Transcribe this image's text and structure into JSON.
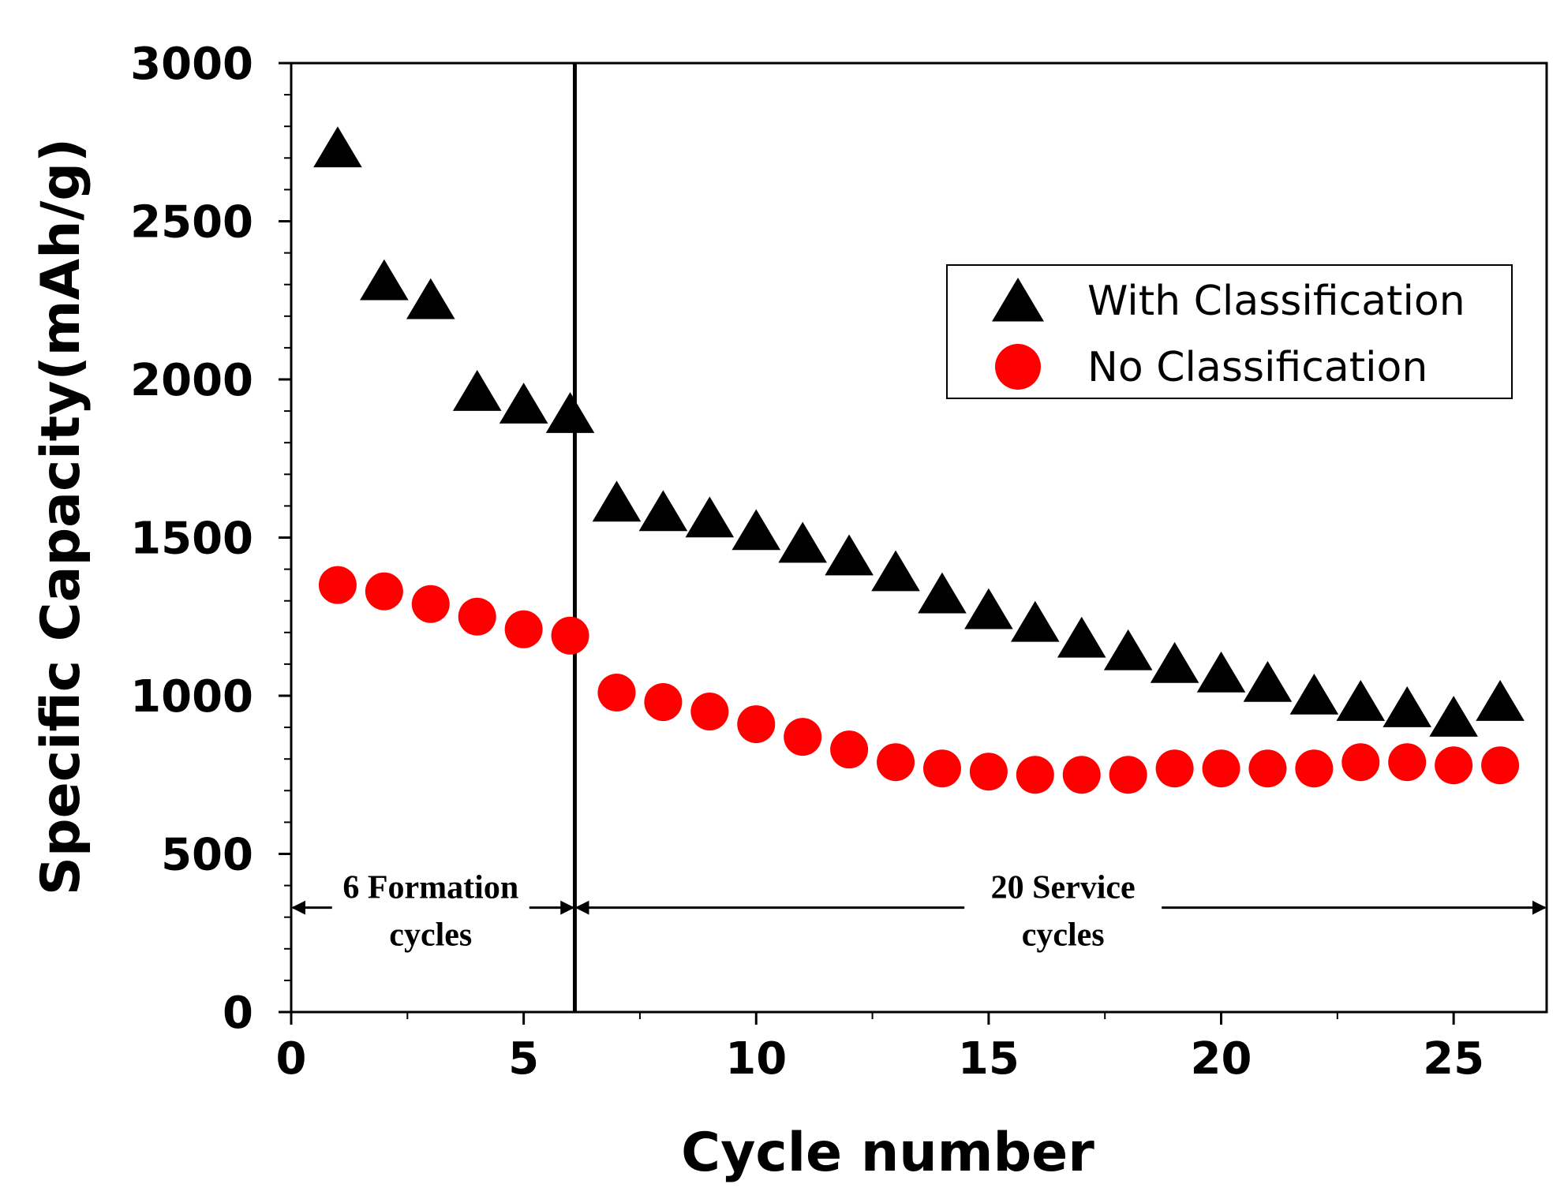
{
  "chart_data": {
    "type": "scatter",
    "title": "",
    "xlabel": "Cycle number",
    "ylabel": "Specific Capacity(mAh/g)",
    "xlim": [
      0,
      27
    ],
    "ylim": [
      0,
      3000
    ],
    "x_ticks": [
      0,
      5,
      10,
      15,
      20,
      25
    ],
    "x_tick_labels": [
      "0",
      "5",
      "10",
      "15",
      "20",
      "25"
    ],
    "y_ticks": [
      0,
      500,
      1000,
      1500,
      2000,
      2500,
      3000
    ],
    "y_tick_labels": [
      "0",
      "500",
      "1000",
      "1500",
      "2000",
      "2500",
      "3000"
    ],
    "grid": false,
    "legend_position": "top-right",
    "divider_x": 6.1,
    "series": [
      {
        "name": "With Classification",
        "marker": "triangle",
        "color": "#000000",
        "x": [
          1,
          2,
          3,
          4,
          5,
          6,
          7,
          8,
          9,
          10,
          11,
          12,
          13,
          14,
          15,
          16,
          17,
          18,
          19,
          20,
          21,
          22,
          23,
          24,
          25,
          26
        ],
        "y": [
          2730,
          2310,
          2250,
          1960,
          1920,
          1890,
          1610,
          1580,
          1560,
          1520,
          1480,
          1440,
          1390,
          1320,
          1270,
          1230,
          1180,
          1140,
          1100,
          1070,
          1040,
          1000,
          980,
          960,
          930,
          980
        ]
      },
      {
        "name": "No Classification",
        "marker": "circle",
        "color": "#ff0000",
        "x": [
          1,
          2,
          3,
          4,
          5,
          6,
          7,
          8,
          9,
          10,
          11,
          12,
          13,
          14,
          15,
          16,
          17,
          18,
          19,
          20,
          21,
          22,
          23,
          24,
          25,
          26
        ],
        "y": [
          1350,
          1330,
          1290,
          1250,
          1210,
          1190,
          1010,
          980,
          950,
          910,
          870,
          830,
          790,
          770,
          760,
          750,
          750,
          750,
          770,
          770,
          770,
          770,
          790,
          790,
          780,
          780
        ]
      }
    ],
    "annotations": [
      {
        "line1": "6 Formation",
        "line2": "cycles",
        "x_start": 0,
        "x_end": 6.1,
        "y": 330,
        "text_x": 3.0
      },
      {
        "line1": "20 Service",
        "line2": "cycles",
        "x_start": 6.1,
        "x_end": 27,
        "y": 330,
        "text_x": 16.6
      }
    ]
  }
}
